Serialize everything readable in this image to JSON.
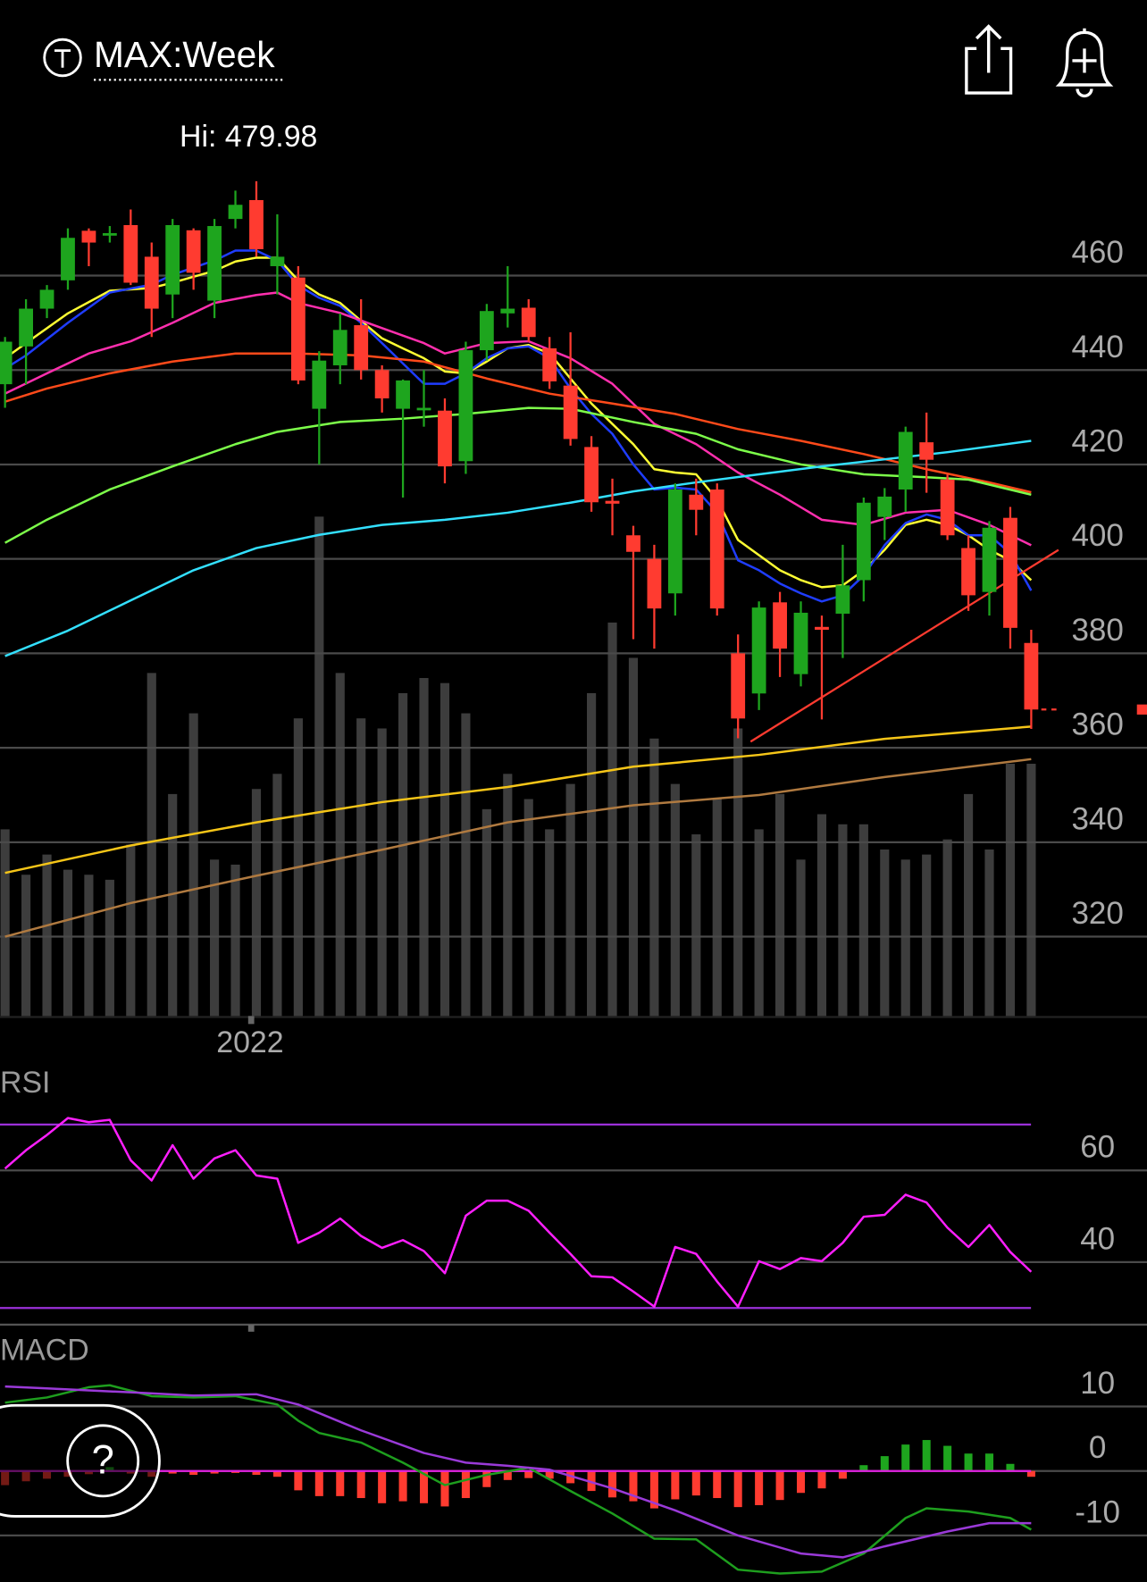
{
  "ui": {
    "help": "?"
  },
  "chart_data": [
    {
      "type": "candlestick",
      "title": "MAX:Week",
      "annotation": "Hi: 479.98",
      "ylim": [
        303.2,
        486.3
      ],
      "yticks": [
        460,
        440,
        420,
        400,
        380,
        360,
        340,
        320
      ],
      "xticks": [
        {
          "value": 11.7,
          "label": "2022"
        }
      ],
      "up_color": "#1ea51e",
      "down_color": "#ff3b30",
      "open": [
        437,
        445,
        453,
        459,
        469.5,
        468.5,
        470.7,
        464,
        456,
        469.6,
        454.7,
        472,
        476,
        462,
        459.6,
        431.8,
        441,
        449.5,
        440,
        431.8,
        431.5,
        431.4,
        420.7,
        444.2,
        452,
        453.2,
        444.6,
        436.7,
        423.7,
        412.3,
        405,
        400,
        392.7,
        413.6,
        414.7,
        380,
        371.5,
        390.8,
        375.6,
        385.6,
        388.4,
        395.5,
        408.9,
        414.7,
        424.7,
        416.8,
        402.3,
        393,
        408.7,
        382.2
      ],
      "high": [
        447,
        455,
        458,
        470,
        470,
        470.5,
        474,
        467,
        472,
        470,
        472,
        478,
        479.98,
        473,
        462,
        444,
        452,
        455,
        441,
        438,
        440,
        434,
        446,
        454,
        462,
        455,
        447,
        448,
        426,
        417,
        407,
        403,
        416,
        417,
        416,
        384,
        391,
        393,
        391,
        388,
        403,
        413,
        415,
        428,
        431,
        418,
        405,
        408,
        411,
        385
      ],
      "low": [
        432,
        437,
        451,
        457,
        462,
        467,
        458,
        447,
        451,
        457,
        451,
        470,
        464,
        456,
        437,
        420,
        437,
        438,
        431,
        413,
        428,
        416,
        418,
        442,
        449,
        446,
        436,
        424,
        410,
        405,
        383,
        381,
        388,
        405,
        388,
        362,
        368,
        375,
        373,
        366,
        379,
        391,
        404,
        410,
        414,
        404,
        389,
        388,
        381,
        364
      ],
      "close": [
        446,
        453,
        457,
        468,
        467,
        469,
        458.5,
        453,
        470.7,
        460.6,
        470.5,
        475,
        465.6,
        464,
        437.8,
        442,
        448.5,
        440,
        434,
        437.8,
        432,
        419.6,
        444.2,
        452.5,
        453,
        447,
        437.6,
        425.4,
        412,
        411.7,
        401.5,
        389.5,
        414.7,
        410.4,
        389.5,
        366.2,
        389.7,
        381,
        388.6,
        385,
        394.4,
        411.9,
        413.2,
        426.9,
        421,
        405,
        392.3,
        406.6,
        385.4,
        368.1
      ],
      "volume": {
        "color": "#3d3d3d",
        "vlim": [
          0,
          100
        ],
        "values": [
          37,
          28,
          32,
          29,
          28,
          27,
          34,
          68,
          44,
          60,
          31,
          30,
          45,
          48,
          59,
          99,
          68,
          59,
          57,
          64,
          67,
          66,
          60,
          41,
          48,
          43,
          37,
          46,
          64,
          78,
          71,
          55,
          46,
          36,
          43,
          57,
          37,
          44,
          31,
          40,
          38,
          38,
          33,
          31,
          32,
          35,
          44,
          33,
          50,
          50
        ]
      },
      "series": [
        {
          "color": "#ffff33",
          "x": [
            0,
            1,
            3,
            5,
            7,
            8,
            10,
            11,
            12,
            13,
            14,
            15,
            16,
            17,
            18,
            19,
            20,
            21,
            22,
            23,
            24,
            25,
            26,
            27,
            28,
            29,
            30,
            31,
            32,
            33,
            34,
            35,
            36,
            37,
            38,
            39,
            40,
            41,
            42,
            43,
            44,
            45,
            46,
            47,
            48,
            49
          ],
          "values": [
            442.5,
            445.7,
            452,
            456.8,
            457.4,
            458.5,
            461,
            463,
            463.8,
            463.8,
            459,
            456,
            454.2,
            450.4,
            446.7,
            444.6,
            442.5,
            439.7,
            439.3,
            441.8,
            444.6,
            445.3,
            443.5,
            438.2,
            432.9,
            428.6,
            424.3,
            419,
            418.3,
            417.9,
            412.6,
            404,
            400.8,
            397.6,
            395.5,
            394,
            394.4,
            397.6,
            401.9,
            407.2,
            408.3,
            407.2,
            405,
            401.9,
            399.7,
            395.5
          ]
        },
        {
          "color": "#1f3dff",
          "x": [
            0,
            1,
            3,
            5,
            7,
            8,
            10,
            11,
            12,
            13,
            14,
            15,
            16,
            17,
            18,
            19,
            20,
            21,
            22,
            23,
            24,
            25,
            26,
            27,
            28,
            29,
            30,
            31,
            32,
            33,
            34,
            35,
            36,
            37,
            38,
            39,
            40,
            41,
            42,
            43,
            44,
            45,
            46,
            47,
            48,
            49
          ],
          "values": [
            440.3,
            443.1,
            450,
            456.4,
            458.1,
            460.2,
            463.2,
            465.3,
            465.3,
            463.2,
            457.9,
            455.3,
            453.6,
            450,
            445.7,
            441.4,
            437.1,
            437.1,
            439.3,
            442.5,
            444.6,
            445,
            442.5,
            436.1,
            430.7,
            426.5,
            420,
            414.7,
            415.1,
            414.7,
            409.8,
            399.7,
            397.6,
            394.8,
            392.7,
            391,
            392.3,
            396.5,
            402.9,
            407.6,
            409.4,
            408.3,
            405,
            405,
            401.2,
            393.3
          ]
        },
        {
          "color": "#ff2fae",
          "x": [
            0,
            2,
            4,
            6,
            8,
            10,
            12,
            13,
            14,
            16,
            18,
            20,
            21,
            23,
            25,
            27,
            29,
            31,
            33,
            35,
            37,
            39,
            41,
            43,
            45,
            47,
            49
          ],
          "values": [
            435,
            439.3,
            443.5,
            446.1,
            450,
            454.2,
            455.9,
            456.4,
            454.2,
            452.1,
            448.9,
            445.7,
            443.5,
            445.7,
            446.1,
            442.5,
            437.1,
            428.6,
            424.3,
            418.3,
            413.6,
            408.3,
            407.2,
            409.8,
            410.4,
            407.2,
            402.9
          ]
        },
        {
          "color": "#ff4a1a",
          "x": [
            0,
            2,
            5,
            8,
            11,
            14,
            17,
            20,
            23,
            26,
            29,
            32,
            35,
            38,
            41,
            44,
            47,
            49
          ],
          "values": [
            433.3,
            436.1,
            439.3,
            441.8,
            443.5,
            443.5,
            443.1,
            441.8,
            438.2,
            435,
            432.9,
            430.7,
            427.5,
            425,
            422.2,
            419,
            416.2,
            414.1
          ]
        },
        {
          "color": "#7dff4a",
          "x": [
            0,
            2,
            5,
            8,
            11,
            13,
            16,
            19,
            22,
            25,
            27,
            30,
            33,
            35,
            38,
            41,
            44,
            46,
            49
          ],
          "values": [
            403.4,
            408.3,
            414.7,
            419.6,
            424.3,
            426.9,
            429,
            429.7,
            430.7,
            432,
            431.8,
            429,
            426.5,
            423.2,
            420,
            417.9,
            417.3,
            416.8,
            413.6
          ]
        },
        {
          "color": "#33e0ff",
          "x": [
            0,
            3,
            6,
            9,
            12,
            15,
            18,
            21,
            24,
            27,
            30,
            33,
            36,
            39,
            42,
            45,
            49
          ],
          "values": [
            379.4,
            384.8,
            391.2,
            397.6,
            402.3,
            405.1,
            407.2,
            408.3,
            409.8,
            411.9,
            414.3,
            416.2,
            417.9,
            419.6,
            421.1,
            422.6,
            425
          ]
        },
        {
          "color": "#f5c518",
          "x": [
            0,
            6,
            12,
            18,
            24,
            30,
            36,
            42,
            49
          ],
          "values": [
            333.5,
            339.3,
            344.2,
            348.5,
            351.7,
            356,
            358.5,
            361.9,
            364.5
          ]
        },
        {
          "color": "#b07a40",
          "x": [
            0,
            6,
            12,
            18,
            24,
            30,
            36,
            42,
            49
          ],
          "values": [
            320,
            327.1,
            332.9,
            338.4,
            344.2,
            347.8,
            350,
            353.8,
            357.6
          ]
        }
      ],
      "trendline": {
        "color": "#ff3b30",
        "x": [
          35.6,
          50.3
        ],
        "values": [
          361.3,
          401.9
        ]
      }
    },
    {
      "type": "line",
      "title": "RSI",
      "ylim": [
        26.6,
        82
      ],
      "yticks": [
        60,
        40
      ],
      "bands": [
        70,
        30
      ],
      "band_color": "#9b30d9",
      "series": [
        {
          "color": "#ff1fff",
          "values": [
            60.4,
            64.4,
            67.7,
            71.4,
            70.5,
            71,
            62.2,
            57.8,
            65.5,
            58.2,
            62.6,
            64.4,
            58.9,
            58.2,
            44.2,
            46.4,
            49.5,
            45.7,
            43.1,
            44.8,
            42.4,
            37.6,
            50.1,
            53.4,
            53.4,
            51.2,
            46.4,
            41.8,
            36.9,
            36.7,
            33.6,
            30.3,
            43.3,
            41.8,
            35.8,
            30.3,
            40.2,
            38.5,
            40.9,
            40.2,
            44.2,
            49.9,
            50.3,
            54.7,
            53,
            47.5,
            43.3,
            48.1,
            42.2,
            37.9
          ]
        }
      ]
    },
    {
      "type": "macd",
      "title": "MACD",
      "ylim": [
        -17.2,
        21.6
      ],
      "yticks": [
        10,
        0,
        -10
      ],
      "zero_line_color": "#e020e0",
      "histogram": {
        "up_color": "#1ea51e",
        "down_color": "#ff3b30",
        "values": [
          -2.2,
          -1.6,
          -1.2,
          -0.9,
          -0.5,
          0.6,
          -0.4,
          -0.9,
          -0.4,
          -0.6,
          -0.4,
          -0.3,
          -0.6,
          -0.9,
          -3,
          -3.9,
          -3.9,
          -4.2,
          -5,
          -4.7,
          -5,
          -5.5,
          -4.2,
          -2.5,
          -1.4,
          -1.1,
          -1.2,
          -1.9,
          -3.1,
          -4.1,
          -4.7,
          -5.8,
          -4.4,
          -3.8,
          -4.2,
          -5.6,
          -5.3,
          -4.5,
          -3.4,
          -2.7,
          -1.2,
          0.9,
          2.3,
          4.1,
          4.8,
          3.9,
          2.7,
          2.7,
          1.1,
          -0.9
        ]
      },
      "series": [
        {
          "color": "#1e9e1e",
          "x": [
            0,
            2,
            4,
            5,
            7,
            9,
            11,
            13,
            14,
            15,
            17,
            19,
            21,
            23,
            25,
            27,
            29,
            31,
            33,
            35,
            37,
            39,
            41,
            43,
            44,
            46,
            48,
            49
          ],
          "values": [
            10.6,
            11.4,
            13,
            13.3,
            11.6,
            11.4,
            11.6,
            10.3,
            7.8,
            5.9,
            4.4,
            1.3,
            -2.2,
            -0.6,
            0.5,
            -3.1,
            -6.6,
            -10.5,
            -10.6,
            -15.3,
            -15.9,
            -15.6,
            -12.8,
            -7.3,
            -5.8,
            -6.3,
            -7.3,
            -9.1
          ]
        },
        {
          "color": "#9a3ad8",
          "x": [
            0,
            2,
            4,
            6,
            9,
            12,
            14,
            17,
            20,
            22,
            24,
            26,
            29,
            32,
            35,
            38,
            40,
            42,
            45,
            47,
            49
          ],
          "values": [
            13.1,
            12.8,
            12.5,
            12.2,
            11.7,
            11.9,
            10.3,
            6.3,
            2.8,
            1.3,
            0.8,
            0.2,
            -2.7,
            -6.1,
            -10,
            -12.8,
            -13.4,
            -11.7,
            -9.4,
            -8.1,
            -8.1
          ]
        }
      ]
    }
  ]
}
